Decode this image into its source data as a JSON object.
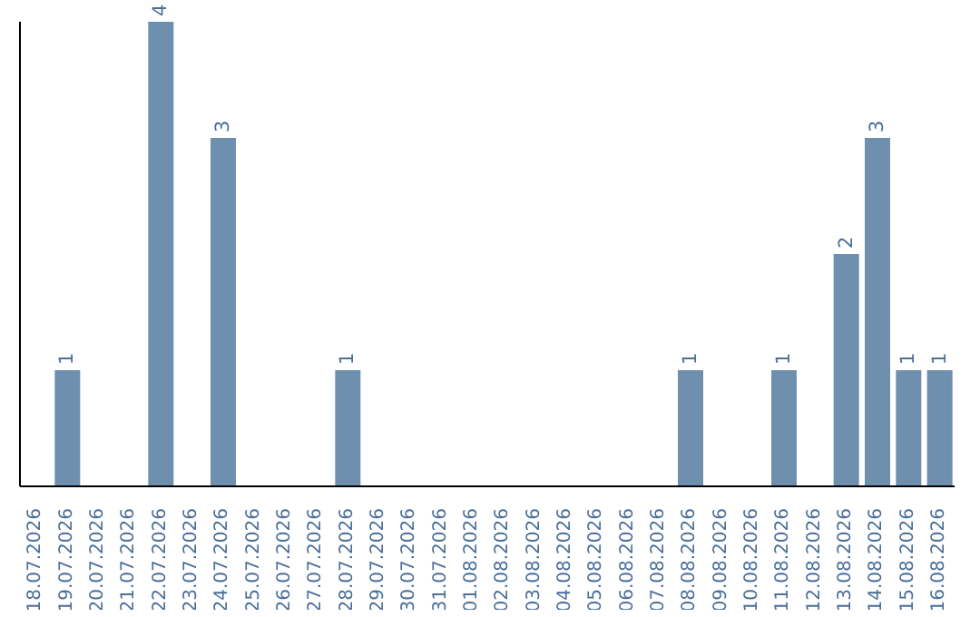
{
  "chart_data": {
    "type": "bar",
    "categories": [
      "18.07.2026",
      "19.07.2026",
      "20.07.2026",
      "21.07.2026",
      "22.07.2026",
      "23.07.2026",
      "24.07.2026",
      "25.07.2026",
      "26.07.2026",
      "27.07.2026",
      "28.07.2026",
      "29.07.2026",
      "30.07.2026",
      "31.07.2026",
      "01.08.2026",
      "02.08.2026",
      "03.08.2026",
      "04.08.2026",
      "05.08.2026",
      "06.08.2026",
      "07.08.2026",
      "08.08.2026",
      "09.08.2026",
      "10.08.2026",
      "11.08.2026",
      "12.08.2026",
      "13.08.2026",
      "14.08.2026",
      "15.08.2026",
      "16.08.2026"
    ],
    "values": [
      0,
      1,
      0,
      0,
      4,
      0,
      3,
      0,
      0,
      0,
      1,
      0,
      0,
      0,
      0,
      0,
      0,
      0,
      0,
      0,
      0,
      1,
      0,
      0,
      1,
      0,
      2,
      3,
      1,
      1
    ],
    "value_labels": [
      null,
      "1",
      null,
      null,
      "4",
      null,
      "3",
      null,
      null,
      null,
      "1",
      null,
      null,
      null,
      null,
      null,
      null,
      null,
      null,
      null,
      null,
      "1",
      null,
      null,
      "1",
      null,
      "2",
      "3",
      "1",
      "1"
    ],
    "color": "#6f8fae",
    "grid": false,
    "legend": false
  }
}
